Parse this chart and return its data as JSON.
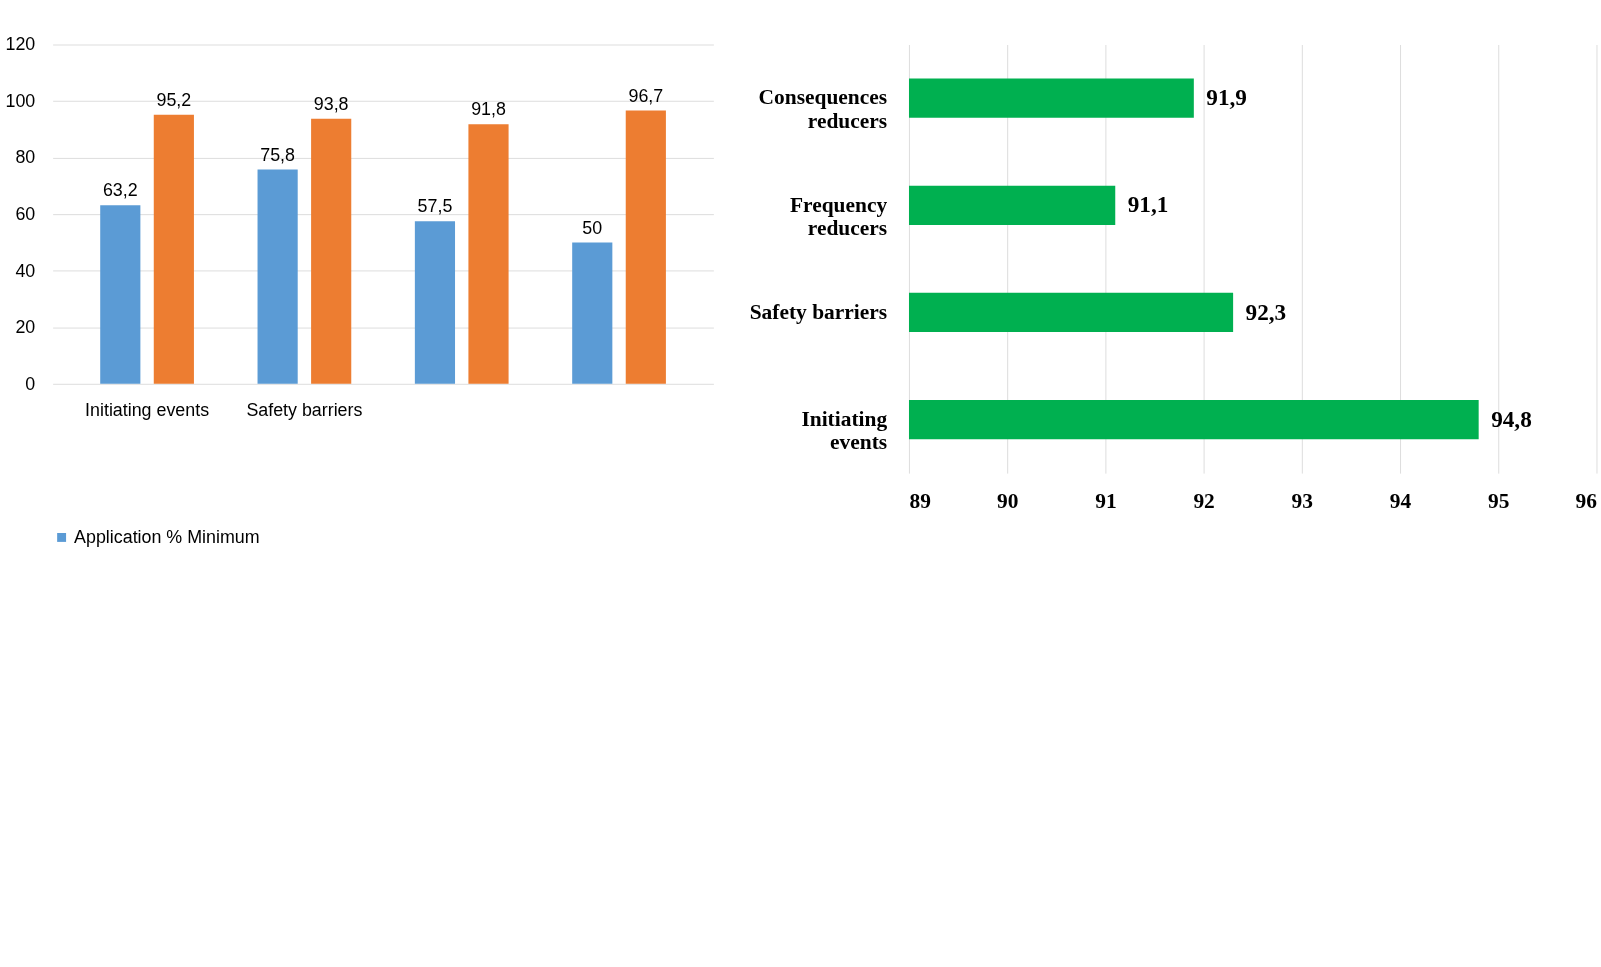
{
  "chart_data": [
    {
      "type": "bar",
      "categories": [
        "Initiating events",
        "Safety barriers",
        null,
        null
      ],
      "series": [
        {
          "name": "Application % Minimum",
          "color": "#5b9bd5",
          "values": [
            63.2,
            75.8,
            57.5,
            50
          ],
          "value_labels": [
            "63,2",
            "75,8",
            "57,5",
            "50"
          ]
        },
        {
          "color": "#ed7d31",
          "values": [
            95.2,
            93.8,
            91.8,
            96.7
          ],
          "value_labels": [
            "95,2",
            "93,8",
            "91,8",
            "96,7"
          ]
        }
      ],
      "ylim": [
        0,
        120
      ],
      "yticks": [
        0,
        20,
        40,
        60,
        80,
        100,
        120
      ],
      "grid": "y",
      "legend": "bottom"
    },
    {
      "type": "bar",
      "orientation": "horizontal",
      "categories": [
        "Consequences\nreducers",
        "Frequency\nreducers",
        "Safety barriers",
        "Initiating\nevents"
      ],
      "values": [
        91.9,
        91.1,
        92.3,
        94.8
      ],
      "value_labels": [
        "91,9",
        "91,1",
        "92,3",
        "94,8"
      ],
      "color": "#00b050",
      "xlim": [
        89,
        96
      ],
      "xticks": [
        89,
        90,
        91,
        92,
        93,
        94,
        95,
        96
      ],
      "grid": "x"
    }
  ]
}
